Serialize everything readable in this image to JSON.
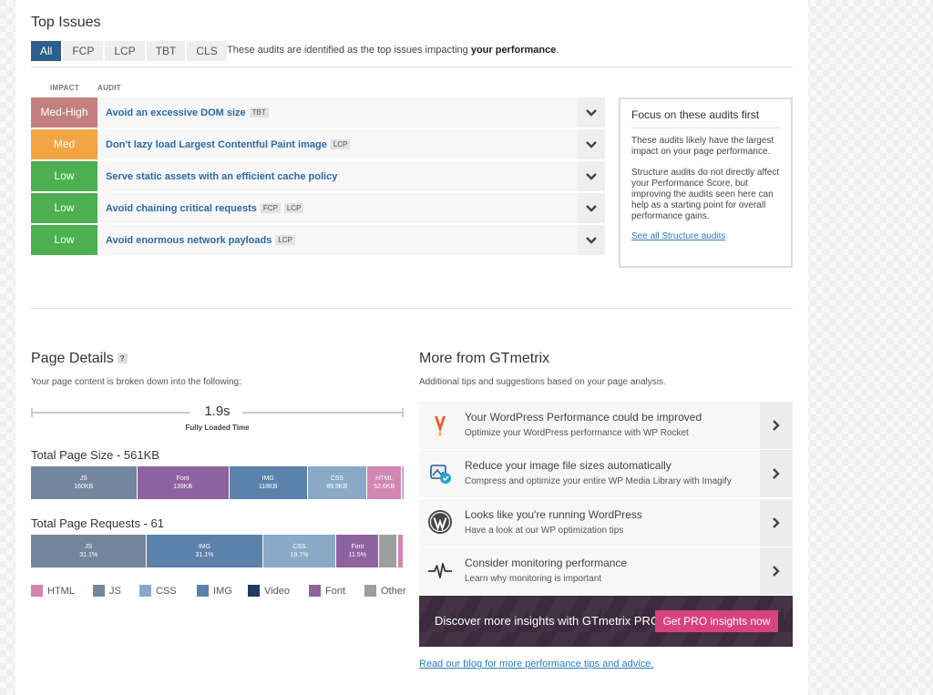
{
  "top_issues": {
    "title": "Top Issues",
    "tabs": [
      {
        "label": "All",
        "active": true
      },
      {
        "label": "FCP",
        "active": false
      },
      {
        "label": "LCP",
        "active": false
      },
      {
        "label": "TBT",
        "active": false
      },
      {
        "label": "CLS",
        "active": false
      }
    ],
    "intro_prefix": "These audits are identified as the top issues impacting ",
    "intro_bold": "your performance",
    "intro_suffix": ".",
    "col_impact": "IMPACT",
    "col_audit": "AUDIT",
    "audits": [
      {
        "impact": "Med-High",
        "color": "#c4807f",
        "title": "Avoid an excessive DOM size",
        "tags": [
          "TBT"
        ]
      },
      {
        "impact": "Med",
        "color": "#f3a443",
        "title": "Don't lazy load Largest Contentful Paint image",
        "tags": [
          "LCP"
        ]
      },
      {
        "impact": "Low",
        "color": "#4caf50",
        "title": "Serve static assets with an efficient cache policy",
        "tags": []
      },
      {
        "impact": "Low",
        "color": "#4caf50",
        "title": "Avoid chaining critical requests",
        "tags": [
          "FCP",
          "LCP"
        ]
      },
      {
        "impact": "Low",
        "color": "#4caf50",
        "title": "Avoid enormous network payloads",
        "tags": [
          "LCP"
        ]
      }
    ],
    "focus": {
      "title": "Focus on these audits first",
      "p1": "These audits likely have the largest impact on your page performance.",
      "p2": "Structure audits do not directly affect your Performance Score, but improving the audits seen here can help as a starting point for overall performance gains.",
      "link": "See all Structure audits"
    }
  },
  "page_details": {
    "title": "Page Details",
    "help": "?",
    "subtitle": "Your page content is broken down into the following:",
    "loaded_time": "1.9s",
    "loaded_label": "Fully Loaded Time",
    "size_title": "Total Page Size - 561KB",
    "size_segments": [
      {
        "name": "JS",
        "value": "160KB",
        "color": "#74869e",
        "kb": 160
      },
      {
        "name": "Font",
        "value": "139KB",
        "color": "#8f63a0",
        "kb": 139
      },
      {
        "name": "IMG",
        "value": "118KB",
        "color": "#5a82aa",
        "kb": 118
      },
      {
        "name": "CSS",
        "value": "89.9KB",
        "color": "#89a9c6",
        "kb": 89.9
      },
      {
        "name": "HTML",
        "value": "52.6KB",
        "color": "#d286b3",
        "kb": 52.6
      },
      {
        "name": "",
        "value": "",
        "color": "#cfcfcf",
        "kb": 1.5
      },
      {
        "name": "",
        "value": "",
        "color": "#d286b3",
        "kb": 0.9
      }
    ],
    "requests_title": "Total Page Requests - 61",
    "request_segments": [
      {
        "name": "JS",
        "value": "31.1%",
        "color": "#74869e",
        "pct": 31.1
      },
      {
        "name": "IMG",
        "value": "31.1%",
        "color": "#5a82aa",
        "pct": 31.1
      },
      {
        "name": "CSS",
        "value": "19.7%",
        "color": "#89a9c6",
        "pct": 19.7
      },
      {
        "name": "Font",
        "value": "11.5%",
        "color": "#8f63a0",
        "pct": 11.5
      },
      {
        "name": "",
        "value": "",
        "color": "#9e9e9e",
        "pct": 4.9
      },
      {
        "name": "",
        "value": "",
        "color": "#d286b3",
        "pct": 1.6
      }
    ],
    "legend": [
      {
        "label": "HTML",
        "color": "#d286b3"
      },
      {
        "label": "JS",
        "color": "#74869e"
      },
      {
        "label": "CSS",
        "color": "#89a9c6"
      },
      {
        "label": "IMG",
        "color": "#5a82aa"
      },
      {
        "label": "Video",
        "color": "#1f3a5c"
      },
      {
        "label": "Font",
        "color": "#8f63a0"
      },
      {
        "label": "Other",
        "color": "#9e9e9e"
      }
    ]
  },
  "more": {
    "title": "More from GTmetrix",
    "subtitle": "Additional tips and suggestions based on your page analysis.",
    "tips": [
      {
        "icon": "wp-rocket-icon",
        "title": "Your WordPress Performance could be improved",
        "sub": "Optimize your WordPress performance with WP Rocket"
      },
      {
        "icon": "imagify-icon",
        "title": "Reduce your image file sizes automatically",
        "sub": "Compress and optimize your entire WP Media Library with Imagify"
      },
      {
        "icon": "wordpress-icon",
        "title": "Looks like you're running WordPress",
        "sub": "Have a look at our WP optimization tips"
      },
      {
        "icon": "pulse-icon",
        "title": "Consider monitoring performance",
        "sub": "Learn why monitoring is important"
      }
    ],
    "pro_text": "Discover more insights with GTmetrix PRO",
    "pro_button": "Get PRO insights now",
    "blog_link": "Read our blog for more performance tips and advice."
  }
}
